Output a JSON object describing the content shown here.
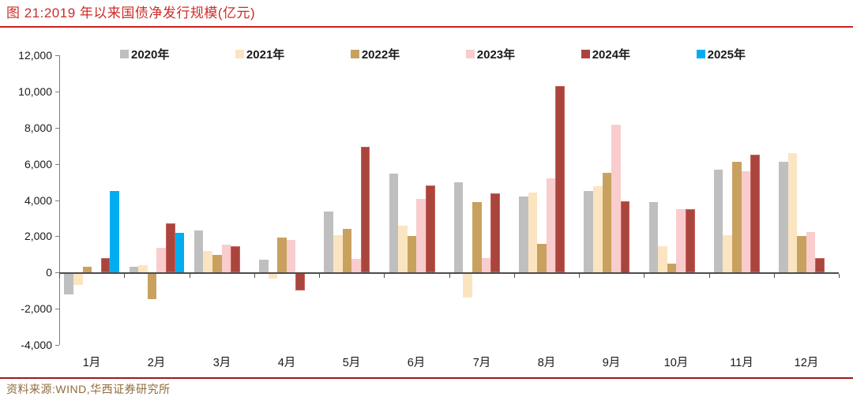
{
  "header": {
    "title": "图 21:2019 年以来国债净发行规模(亿元)"
  },
  "footer": {
    "source": "资料来源:WIND,华西证券研究所"
  },
  "colors": {
    "title_red": "#CE2B27",
    "top_rule_red": "#C8211D",
    "bottom_rule_red": "#9E1B15",
    "source_brown": "#8E6C3C",
    "axis_gray": "#7f7f7f"
  },
  "chart_data": {
    "type": "bar",
    "title": "2019 年以来国债净发行规模(亿元)",
    "xlabel": "",
    "ylabel": "",
    "unit": "亿元",
    "grid": false,
    "legend_position": "top",
    "ylim": [
      -4000,
      12000
    ],
    "y_ticks": [
      {
        "value": 12000,
        "label": "12,000"
      },
      {
        "value": 10000,
        "label": "10,000"
      },
      {
        "value": 8000,
        "label": "8,000"
      },
      {
        "value": 6000,
        "label": "6,000"
      },
      {
        "value": 4000,
        "label": "4,000"
      },
      {
        "value": 2000,
        "label": "2,000"
      },
      {
        "value": 0,
        "label": "0"
      },
      {
        "value": -2000,
        "label": "-2,000"
      },
      {
        "value": -4000,
        "label": "-4,000"
      }
    ],
    "categories": [
      "1月",
      "2月",
      "3月",
      "4月",
      "5月",
      "6月",
      "7月",
      "8月",
      "9月",
      "10月",
      "11月",
      "12月"
    ],
    "series": [
      {
        "name": "2020年",
        "color": "#BFBFBF",
        "values": [
          -1200,
          300,
          2300,
          700,
          3350,
          5450,
          5000,
          4200,
          4500,
          3900,
          5700,
          6100
        ]
      },
      {
        "name": "2021年",
        "color": "#FBE5C0",
        "values": [
          -700,
          400,
          1200,
          -350,
          2050,
          2600,
          -1400,
          4400,
          4750,
          1450,
          2050,
          6600
        ]
      },
      {
        "name": "2022年",
        "color": "#C9A15F",
        "values": [
          300,
          -1500,
          950,
          1950,
          2400,
          2000,
          3900,
          1600,
          5500,
          500,
          6100,
          2000
        ]
      },
      {
        "name": "2023年",
        "color": "#F9CCCE",
        "values": [
          0,
          1350,
          1550,
          1800,
          750,
          4050,
          800,
          5200,
          8150,
          3500,
          5600,
          2250
        ]
      },
      {
        "name": "2024年",
        "color": "#A9453D",
        "stroke": "#C9625A",
        "values": [
          800,
          2700,
          1450,
          -1000,
          6950,
          4800,
          4350,
          10300,
          3950,
          3500,
          6500,
          800
        ]
      },
      {
        "name": "2025年",
        "color": "#00AEEF",
        "values": [
          4500,
          2200,
          null,
          null,
          null,
          null,
          null,
          null,
          null,
          null,
          null,
          null
        ]
      }
    ]
  }
}
